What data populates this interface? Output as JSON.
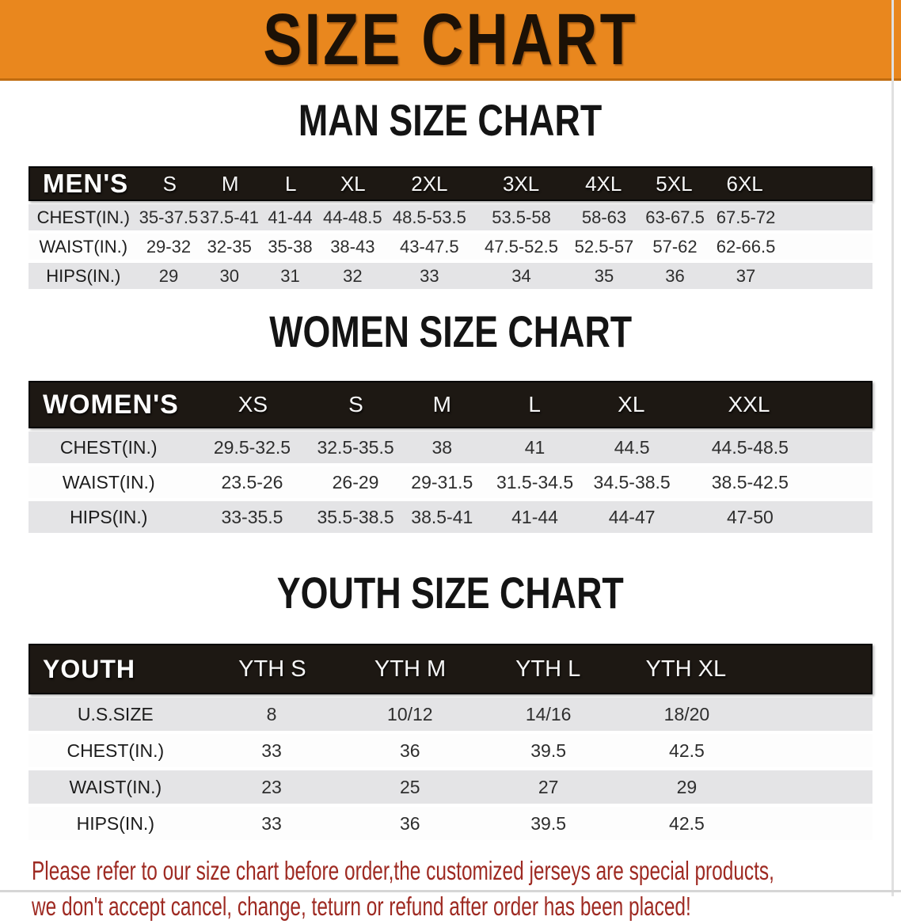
{
  "banner": {
    "title": "SIZE CHART"
  },
  "charts": [
    {
      "heading": "MAN SIZE CHART",
      "label": "MEN'S",
      "columns": [
        "S",
        "M",
        "L",
        "XL",
        "2XL",
        "3XL",
        "4XL",
        "5XL",
        "6XL"
      ],
      "rows": [
        {
          "label": "CHEST(IN.)",
          "values": [
            "35-37.5",
            "37.5-41",
            "41-44",
            "44-48.5",
            "48.5-53.5",
            "53.5-58",
            "58-63",
            "63-67.5",
            "67.5-72"
          ]
        },
        {
          "label": "WAIST(IN.)",
          "values": [
            "29-32",
            "32-35",
            "35-38",
            "38-43",
            "43-47.5",
            "47.5-52.5",
            "52.5-57",
            "57-62",
            "62-66.5"
          ]
        },
        {
          "label": "HIPS(IN.)",
          "values": [
            "29",
            "30",
            "31",
            "32",
            "33",
            "34",
            "35",
            "36",
            "37"
          ]
        }
      ]
    },
    {
      "heading": "WOMEN SIZE CHART",
      "label": "WOMEN'S",
      "columns": [
        "XS",
        "S",
        "M",
        "L",
        "XL",
        "XXL"
      ],
      "rows": [
        {
          "label": "CHEST(IN.)",
          "values": [
            "29.5-32.5",
            "32.5-35.5",
            "38",
            "41",
            "44.5",
            "44.5-48.5"
          ]
        },
        {
          "label": "WAIST(IN.)",
          "values": [
            "23.5-26",
            "26-29",
            "29-31.5",
            "31.5-34.5",
            "34.5-38.5",
            "38.5-42.5"
          ]
        },
        {
          "label": "HIPS(IN.)",
          "values": [
            "33-35.5",
            "35.5-38.5",
            "38.5-41",
            "41-44",
            "44-47",
            "47-50"
          ]
        }
      ]
    },
    {
      "heading": "YOUTH SIZE CHART",
      "label": "YOUTH",
      "columns": [
        "YTH S",
        "YTH M",
        "YTH L",
        "YTH XL"
      ],
      "rows": [
        {
          "label": "U.S.SIZE",
          "values": [
            "8",
            "10/12",
            "14/16",
            "18/20"
          ]
        },
        {
          "label": "CHEST(IN.)",
          "values": [
            "33",
            "36",
            "39.5",
            "42.5"
          ]
        },
        {
          "label": "WAIST(IN.)",
          "values": [
            "23",
            "25",
            "27",
            "29"
          ]
        },
        {
          "label": "HIPS(IN.)",
          "values": [
            "33",
            "36",
            "39.5",
            "42.5"
          ]
        }
      ]
    }
  ],
  "disclaimer": {
    "line1": "Please refer to our size chart before order,the customized jerseys are special products,",
    "line2": "we don't accept cancel, change, teturn or refund after order has been placed!"
  },
  "colors": {
    "banner_orange": "#e9871e",
    "banner_text": "#1c1106",
    "table_header_black": "#1d1813",
    "table_header_text": "#ffffff",
    "row_gray": "#e4e4e6",
    "row_white": "#fdfdfd",
    "body_text": "#2e2e2e",
    "disclaimer_red": "#9e2a22"
  }
}
